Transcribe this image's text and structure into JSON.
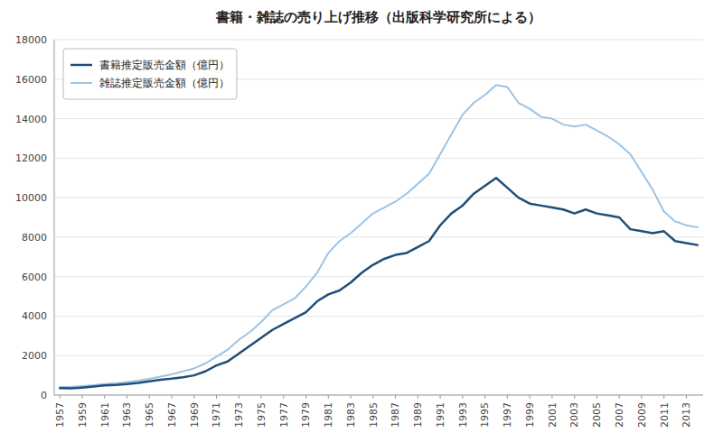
{
  "chart_data": {
    "type": "line",
    "title": "書籍・雑誌の売り上げ推移（出版科学研究所による）",
    "x": [
      1957,
      1958,
      1959,
      1960,
      1961,
      1962,
      1963,
      1964,
      1965,
      1966,
      1967,
      1968,
      1969,
      1970,
      1971,
      1972,
      1973,
      1974,
      1975,
      1976,
      1977,
      1978,
      1979,
      1980,
      1981,
      1982,
      1983,
      1984,
      1985,
      1986,
      1987,
      1988,
      1989,
      1990,
      1991,
      1992,
      1993,
      1994,
      1995,
      1996,
      1997,
      1998,
      1999,
      2000,
      2001,
      2002,
      2003,
      2004,
      2005,
      2006,
      2007,
      2008,
      2009,
      2010,
      2011,
      2012,
      2013,
      2014
    ],
    "series": [
      {
        "name": "書籍推定販売金額（億円）",
        "color": "#1f4e79",
        "values": [
          350,
          340,
          380,
          430,
          490,
          510,
          560,
          620,
          700,
          780,
          830,
          900,
          1000,
          1200,
          1500,
          1700,
          2100,
          2500,
          2900,
          3300,
          3600,
          3900,
          4200,
          4750,
          5100,
          5300,
          5700,
          6200,
          6600,
          6900,
          7100,
          7200,
          7500,
          7800,
          8600,
          9200,
          9600,
          10200,
          10600,
          11000,
          10500,
          10000,
          9700,
          9600,
          9500,
          9400,
          9200,
          9400,
          9200,
          9100,
          9000,
          8400,
          8300,
          8200,
          8300,
          7800,
          7700,
          7600
        ]
      },
      {
        "name": "雑誌推定販売金額（億円）",
        "color": "#9dc3e6",
        "values": [
          400,
          420,
          460,
          500,
          560,
          600,
          660,
          730,
          820,
          940,
          1050,
          1200,
          1350,
          1600,
          1950,
          2300,
          2800,
          3200,
          3700,
          4300,
          4600,
          4900,
          5500,
          6200,
          7200,
          7800,
          8200,
          8700,
          9200,
          9500,
          9800,
          10200,
          10700,
          11200,
          12200,
          13200,
          14200,
          14800,
          15200,
          15700,
          15600,
          14800,
          14500,
          14100,
          14000,
          13700,
          13600,
          13700,
          13400,
          13100,
          12700,
          12200,
          11300,
          10400,
          9300,
          8800,
          8600,
          8500
        ]
      }
    ],
    "xlim": [
      1956.5,
      2014.5
    ],
    "xticks": [
      1957,
      1959,
      1961,
      1963,
      1965,
      1967,
      1969,
      1971,
      1973,
      1975,
      1977,
      1979,
      1981,
      1983,
      1985,
      1987,
      1989,
      1991,
      1993,
      1995,
      1997,
      1999,
      2001,
      2003,
      2005,
      2007,
      2009,
      2011,
      2013
    ],
    "ylim": [
      0,
      18000
    ],
    "yticks": [
      0,
      2000,
      4000,
      6000,
      8000,
      10000,
      12000,
      14000,
      16000,
      18000
    ],
    "grid": true,
    "legend": "upper left"
  }
}
